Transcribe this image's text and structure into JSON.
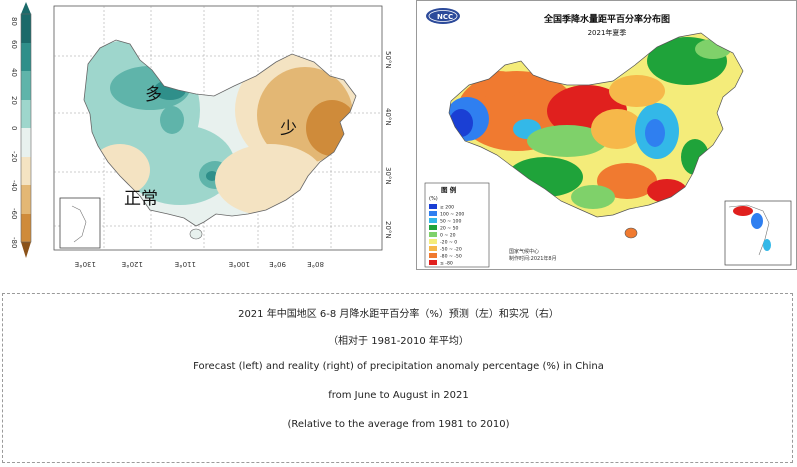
{
  "left_map": {
    "colorbar_ticks": [
      "80",
      "60",
      "40",
      "20",
      "0",
      "-20",
      "-40",
      "-60",
      "-80"
    ],
    "colorbar_colors": [
      "#1b6a6a",
      "#2f8f8a",
      "#5fb4aa",
      "#9ed6cc",
      "#e8f1ee",
      "#f4e3c2",
      "#e3b774",
      "#cf8b3a",
      "#8b5219"
    ],
    "lat_labels": [
      "50°N",
      "40°N",
      "30°N",
      "20°N"
    ],
    "lon_labels": [
      "130°E",
      "120°E",
      "110°E",
      "100°E",
      "90°E",
      "80°E"
    ],
    "label_more": "多",
    "label_less": "少",
    "label_normal": "正常"
  },
  "right_map": {
    "logo_text": "NCC",
    "title": "全国季降水量距平百分率分布图",
    "subtitle": "2021年夏季",
    "legend_title": "图 例",
    "legend_unit": "(%)",
    "legend_items": [
      {
        "color": "#1a3fd4",
        "label": "≥ 200"
      },
      {
        "color": "#2f7ff0",
        "label": "100 ~ 200"
      },
      {
        "color": "#33b8e8",
        "label": "50 ~ 100"
      },
      {
        "color": "#1fa33a",
        "label": "20 ~ 50"
      },
      {
        "color": "#7fd16a",
        "label": "0 ~ 20"
      },
      {
        "color": "#f4ec7a",
        "label": "-20 ~ 0"
      },
      {
        "color": "#f6b84a",
        "label": "-50 ~ -20"
      },
      {
        "color": "#f07a30",
        "label": "-80 ~ -50"
      },
      {
        "color": "#e0201e",
        "label": "≤ -80"
      }
    ],
    "footer_1": "国家气候中心",
    "footer_2": "制作时间:2021年8月"
  },
  "caption": {
    "zh_line1": "2021 年中国地区 6-8 月降水距平百分率（%）预测（左）和实况（右）",
    "zh_line2": "（相对于 1981-2010 年平均）",
    "en_line1": "Forecast (left) and reality (right) of precipitation anomaly percentage (%) in China",
    "en_line2": "from June to August in 2021",
    "en_line3": "(Relative to the average from 1981 to 2010)"
  }
}
